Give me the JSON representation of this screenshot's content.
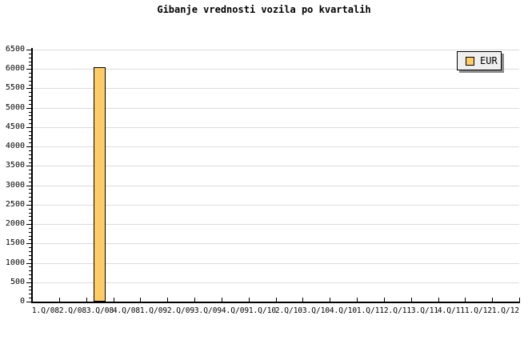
{
  "chart_data": {
    "type": "bar",
    "title": "Gibanje vrednosti vozila po kvartalih",
    "categories": [
      "1.Q/08",
      "2.Q/08",
      "3.Q/08",
      "4.Q/08",
      "1.Q/09",
      "2.Q/09",
      "3.Q/09",
      "4.Q/09",
      "1.Q/10",
      "2.Q/10",
      "3.Q/10",
      "4.Q/10",
      "1.Q/11",
      "2.Q/11",
      "3.Q/11",
      "4.Q/11",
      "1.Q/12",
      "1.Q/12"
    ],
    "series": [
      {
        "name": "EUR",
        "values": [
          null,
          null,
          6050,
          null,
          null,
          null,
          null,
          null,
          null,
          null,
          null,
          null,
          null,
          null,
          null,
          null,
          null,
          null
        ]
      }
    ],
    "xlabel": "",
    "ylabel": "",
    "ylim": [
      0,
      6500
    ],
    "ytick_major": 500,
    "ytick_minor": 100,
    "grid": true,
    "legend_position": "top-right"
  },
  "legend": {
    "label": "EUR"
  },
  "colors": {
    "bar_fill": "#FFCC66",
    "bar_border": "#000000",
    "grid_line": "#DCDCDC",
    "axis_line": "#000000",
    "text": "#000000",
    "legend_bg": "#EFEFEF",
    "legend_border": "#000000",
    "legend_shadow": "#8C8C8C",
    "background": "#FFFFFF"
  }
}
